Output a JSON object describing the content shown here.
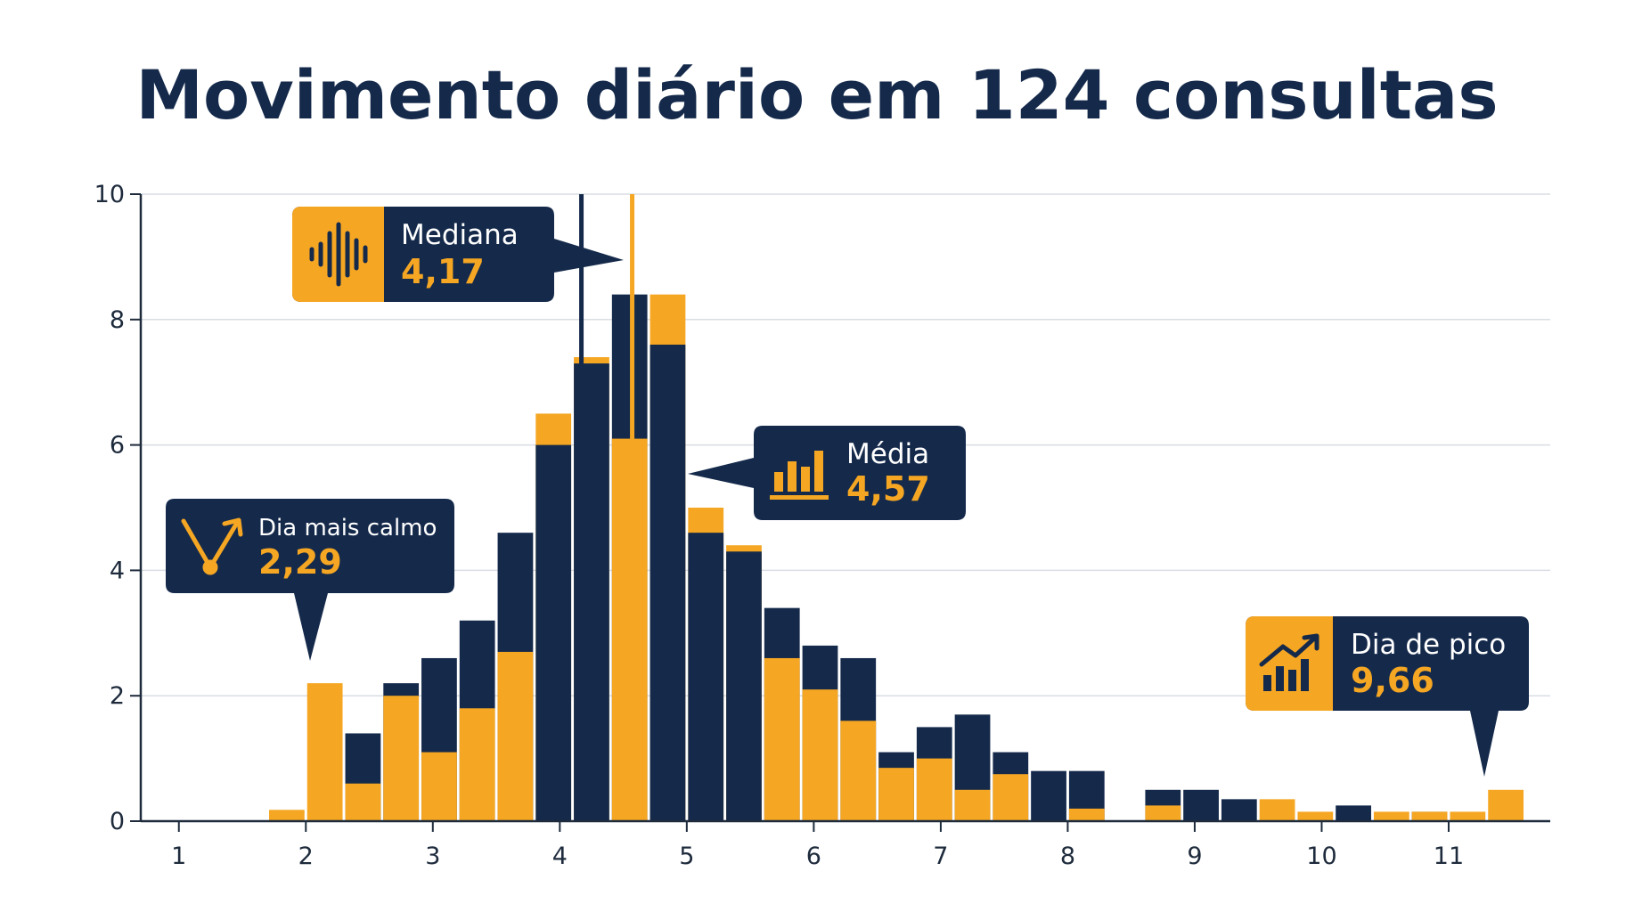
{
  "colors": {
    "navy": "#152a4b",
    "amber": "#f5a623",
    "grid": "#d9dde3",
    "axis": "#1e2b3c"
  },
  "chart_data": {
    "type": "bar",
    "title": "Movimento diário em 124 consultas",
    "xlabel": "",
    "ylabel": "",
    "xlim": [
      0.7,
      11.8
    ],
    "ylim": [
      0,
      10
    ],
    "x_ticks": [
      "1",
      "2",
      "3",
      "4",
      "5",
      "6",
      "7",
      "8",
      "9",
      "10",
      "11"
    ],
    "y_ticks": [
      "0",
      "2",
      "4",
      "6",
      "8",
      "10"
    ],
    "grid": true,
    "bin_width": 0.3,
    "bins_start": [
      1.7,
      2.0,
      2.3,
      2.6,
      2.9,
      3.2,
      3.5,
      3.8,
      4.1,
      4.4,
      4.7,
      5.0,
      5.3,
      5.6,
      5.9,
      6.2,
      6.5,
      6.8,
      7.1,
      7.4,
      7.7,
      8.0,
      8.3,
      8.6,
      8.9,
      9.2,
      9.5,
      9.8,
      10.1,
      10.4,
      10.7,
      11.0,
      11.3
    ],
    "series": [
      {
        "color": "#152a4b",
        "values": [
          0,
          0,
          1.4,
          2.2,
          2.6,
          3.2,
          4.6,
          6.0,
          7.3,
          8.4,
          7.6,
          4.6,
          4.3,
          3.4,
          2.8,
          2.6,
          1.1,
          1.5,
          1.7,
          1.1,
          0.8,
          0.8,
          0,
          0.5,
          0.5,
          0.35,
          0,
          0,
          0.25,
          0,
          0.15,
          0,
          0
        ]
      },
      {
        "color": "#f5a623",
        "values": [
          0.18,
          2.2,
          0.6,
          2.0,
          1.1,
          1.8,
          2.7,
          6.5,
          7.4,
          6.1,
          8.4,
          5.0,
          4.4,
          2.6,
          2.1,
          1.6,
          0.85,
          1.0,
          0.5,
          0.75,
          0,
          0.2,
          0,
          0.25,
          0,
          0,
          0.35,
          0.15,
          0,
          0.15,
          0.15,
          0.15,
          0.5
        ]
      }
    ],
    "reference_lines": [
      {
        "name": "Mediana",
        "x": 4.17,
        "color": "#152a4b"
      },
      {
        "name": "Média",
        "x": 4.57,
        "color": "#f5a623"
      }
    ],
    "annotations": [
      {
        "id": "mediana",
        "label": "Mediana",
        "value": "4,17",
        "icon": "waveform-icon"
      },
      {
        "id": "media",
        "label": "Média",
        "value": "4,57",
        "icon": "bar-chart-icon"
      },
      {
        "id": "calmo",
        "label": "Dia mais calmo",
        "value": "2,29",
        "icon": "trend-down-up-icon"
      },
      {
        "id": "pico",
        "label": "Dia de pico",
        "value": "9,66",
        "icon": "trend-up-icon"
      }
    ]
  }
}
